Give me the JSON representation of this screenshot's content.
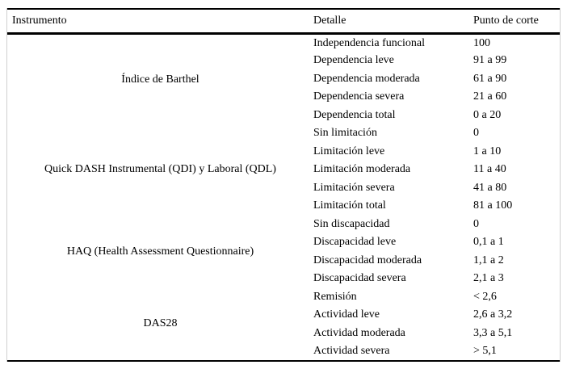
{
  "table": {
    "headers": [
      "Instrumento",
      "Detalle",
      "Punto de corte"
    ],
    "groups": [
      {
        "instrument": "Índice de Barthel",
        "rows": [
          {
            "detail": "Independencia funcional",
            "cutoff": "100"
          },
          {
            "detail": "Dependencia leve",
            "cutoff": "91 a 99"
          },
          {
            "detail": "Dependencia moderada",
            "cutoff": "61 a 90"
          },
          {
            "detail": "Dependencia severa",
            "cutoff": "21 a 60"
          },
          {
            "detail": "Dependencia total",
            "cutoff": "0 a 20"
          }
        ]
      },
      {
        "instrument": "Quick DASH Instrumental (QDI) y Laboral (QDL)",
        "rows": [
          {
            "detail": "Sin limitación",
            "cutoff": "0"
          },
          {
            "detail": "Limitación leve",
            "cutoff": "1 a 10"
          },
          {
            "detail": "Limitación moderada",
            "cutoff": "11 a 40"
          },
          {
            "detail": "Limitación severa",
            "cutoff": "41 a 80"
          },
          {
            "detail": "Limitación total",
            "cutoff": "81 a 100"
          }
        ]
      },
      {
        "instrument": "HAQ (Health Assessment Questionnaire)",
        "rows": [
          {
            "detail": "Sin discapacidad",
            "cutoff": "0"
          },
          {
            "detail": "Discapacidad leve",
            "cutoff": "0,1 a 1"
          },
          {
            "detail": "Discapacidad moderada",
            "cutoff": "1,1 a 2"
          },
          {
            "detail": "Discapacidad severa",
            "cutoff": "2,1 a 3"
          }
        ]
      },
      {
        "instrument": "DAS28",
        "rows": [
          {
            "detail": "Remisión",
            "cutoff": "< 2,6"
          },
          {
            "detail": "Actividad leve",
            "cutoff": "2,6 a 3,2"
          },
          {
            "detail": "Actividad moderada",
            "cutoff": "3,3 a 5,1"
          },
          {
            "detail": "Actividad severa",
            "cutoff": "> 5,1"
          }
        ]
      }
    ],
    "colors": {
      "text": "#000000",
      "rule": "#000000",
      "box_border": "#cfcfcf",
      "background": "#ffffff"
    }
  }
}
